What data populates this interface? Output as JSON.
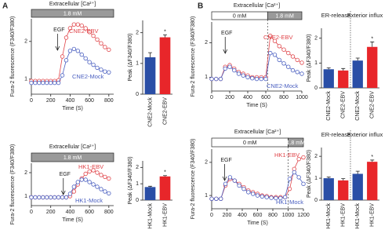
{
  "panel_labels": [
    "A",
    "B"
  ],
  "chart_data": [
    {
      "type": "line",
      "ylabel": "Fura-2 fluorescence (F340/F380)",
      "xlabel": "Time (S)",
      "header": "Extracellular [Ca²⁺]",
      "conditions": [
        {
          "label": "1.8 mM",
          "start": 0,
          "end": 850,
          "color": "#9a9a9a"
        }
      ],
      "annotations": [
        {
          "text": "EGF",
          "x": 270
        }
      ],
      "x": [
        0,
        40,
        80,
        120,
        160,
        200,
        240,
        280,
        320,
        360,
        400,
        440,
        480,
        520,
        560,
        600,
        640,
        680,
        720,
        760,
        800
      ],
      "series": [
        {
          "name": "CNE2-EBV",
          "color": "#e0454a",
          "values": [
            0.95,
            0.95,
            0.95,
            0.95,
            0.95,
            0.95,
            0.95,
            0.97,
            1.6,
            2.1,
            2.35,
            2.45,
            2.45,
            2.42,
            2.35,
            2.25,
            2.15,
            2.05,
            1.95,
            1.85,
            1.78
          ]
        },
        {
          "name": "CNE2-Mock",
          "color": "#4a5fc0",
          "values": [
            0.9,
            0.9,
            0.9,
            0.9,
            0.9,
            0.9,
            0.9,
            0.9,
            1.1,
            1.5,
            1.75,
            1.8,
            1.75,
            1.65,
            1.55,
            1.45,
            1.38,
            1.3,
            1.25,
            1.2,
            1.18
          ]
        }
      ],
      "xlim": [
        0,
        850
      ],
      "xticks": [
        0,
        200,
        400,
        600,
        800
      ],
      "ylim": [
        0.6,
        2.6
      ],
      "yticks": [
        1,
        2
      ]
    },
    {
      "type": "bar",
      "ylabel": "Peak (ΔF340/F380)",
      "categories": [
        "CNE2-Mock",
        "CNE2-EBV"
      ],
      "values": [
        1.2,
        1.85
      ],
      "errors": [
        0.15,
        0.08
      ],
      "colors": [
        "#2a4ea6",
        "#e8262a"
      ],
      "ylim": [
        0,
        2.4
      ],
      "yticks": [
        0,
        1,
        2
      ],
      "annotations": [
        {
          "text": "*",
          "index": 1
        }
      ]
    },
    {
      "type": "line",
      "ylabel": "Fura-2 fluorescence (F340/F380)",
      "xlabel": "Time (S)",
      "header": "Extracellular [Ca²⁺]",
      "conditions": [
        {
          "label": "1.8 mM",
          "start": 0,
          "end": 850,
          "color": "#9a9a9a"
        }
      ],
      "annotations": [
        {
          "text": "EGF",
          "x": 330
        }
      ],
      "x": [
        0,
        40,
        80,
        120,
        160,
        200,
        240,
        280,
        320,
        360,
        400,
        440,
        480,
        520,
        560,
        600,
        640,
        680,
        720,
        760,
        800
      ],
      "series": [
        {
          "name": "HK1-EBV",
          "color": "#e0454a",
          "values": [
            0.95,
            0.95,
            0.95,
            0.95,
            0.95,
            0.95,
            0.95,
            0.95,
            0.95,
            0.95,
            1.0,
            1.2,
            1.5,
            1.75,
            1.95,
            2.05,
            2.1,
            2.0,
            1.9,
            1.82,
            1.75
          ]
        },
        {
          "name": "HK1-Mock",
          "color": "#4a5fc0",
          "values": [
            0.95,
            0.95,
            0.95,
            0.95,
            0.95,
            0.95,
            0.95,
            0.95,
            0.95,
            0.95,
            1.1,
            1.4,
            1.6,
            1.7,
            1.7,
            1.6,
            1.5,
            1.4,
            1.3,
            1.2,
            1.12
          ]
        }
      ],
      "xlim": [
        0,
        850
      ],
      "xticks": [
        0,
        200,
        400,
        600,
        800
      ],
      "ylim": [
        0.6,
        2.4
      ],
      "yticks": [
        1,
        2
      ]
    },
    {
      "type": "bar",
      "ylabel": "Peak (ΔF340/F380)",
      "categories": [
        "HK1-Mock",
        "HK1-EBV"
      ],
      "values": [
        0.8,
        1.45
      ],
      "errors": [
        0.05,
        0.05
      ],
      "colors": [
        "#2a4ea6",
        "#e8262a"
      ],
      "ylim": [
        0,
        2.4
      ],
      "yticks": [
        0,
        1,
        2
      ],
      "annotations": [
        {
          "text": "*",
          "index": 1
        }
      ]
    },
    {
      "type": "line",
      "ylabel": "Fura-2 fluorescence (F340/F380)",
      "xlabel": "Time (S)",
      "header": "Extracellular [Ca²⁺]",
      "conditions": [
        {
          "label": "0 mM",
          "start": 0,
          "end": 620,
          "color": "#ffffff"
        },
        {
          "label": "1.8 mM",
          "start": 620,
          "end": 1000,
          "color": "#9a9a9a"
        }
      ],
      "annotations": [
        {
          "text": "EGF",
          "x": 150
        }
      ],
      "x": [
        0,
        50,
        100,
        150,
        200,
        250,
        300,
        350,
        400,
        450,
        500,
        550,
        600,
        650,
        700,
        750,
        800,
        850,
        900,
        950,
        1000
      ],
      "series": [
        {
          "name": "CNE2-EBV",
          "color": "#e0454a",
          "values": [
            0.95,
            0.95,
            0.95,
            1.3,
            1.35,
            1.25,
            1.15,
            1.1,
            1.05,
            1.0,
            1.0,
            1.0,
            1.0,
            2.2,
            2.05,
            1.9,
            1.8,
            1.7,
            1.6,
            1.5,
            1.42
          ]
        },
        {
          "name": "CNE2-Mock",
          "color": "#4a5fc0",
          "values": [
            0.95,
            0.95,
            0.95,
            1.25,
            1.3,
            1.2,
            1.1,
            1.05,
            1.0,
            0.97,
            0.95,
            0.95,
            0.95,
            1.7,
            1.65,
            1.5,
            1.4,
            1.3,
            1.2,
            1.15,
            1.1
          ]
        }
      ],
      "xlim": [
        0,
        1000
      ],
      "xticks": [
        0,
        200,
        400,
        600,
        800,
        1000
      ],
      "ylim": [
        0.6,
        2.6
      ],
      "yticks": [
        1,
        2
      ]
    },
    {
      "type": "bar",
      "ylabel": "Peak (ΔF340/F380)",
      "categories": [
        "CNE2-Mock",
        "CNE2-EBV",
        "CNE2-Mock",
        "CNE2-EBV"
      ],
      "values": [
        0.75,
        0.7,
        1.1,
        1.65
      ],
      "errors": [
        0.06,
        0.08,
        0.1,
        0.2
      ],
      "colors": [
        "#2a4ea6",
        "#e8262a",
        "#2a4ea6",
        "#e8262a"
      ],
      "group_labels": [
        "ER-release",
        "Exterior influx"
      ],
      "ylim": [
        0,
        2.4
      ],
      "yticks": [
        0,
        1,
        2
      ],
      "annotations": [
        {
          "text": "*",
          "index": 3
        }
      ]
    },
    {
      "type": "line",
      "ylabel": "Fura-2 fluorescence (F340/F380)",
      "xlabel": "Time (S)",
      "header": "Extracellular [Ca²⁺]",
      "conditions": [
        {
          "label": "0 mM",
          "start": 0,
          "end": 1000,
          "color": "#ffffff"
        },
        {
          "label": "1.8 mM",
          "start": 1000,
          "end": 1200,
          "color": "#9a9a9a"
        }
      ],
      "annotations": [
        {
          "text": "EGF",
          "x": 170
        }
      ],
      "x": [
        0,
        60,
        120,
        180,
        240,
        300,
        360,
        420,
        480,
        540,
        600,
        660,
        720,
        780,
        840,
        900,
        960,
        1020,
        1080,
        1140,
        1200
      ],
      "series": [
        {
          "name": "HK1-EBV",
          "color": "#e0454a",
          "values": [
            0.9,
            0.9,
            0.9,
            1.3,
            1.5,
            1.45,
            1.35,
            1.25,
            1.15,
            1.1,
            1.05,
            1.0,
            0.98,
            0.95,
            0.95,
            0.95,
            0.95,
            1.2,
            1.8,
            2.1,
            2.15
          ]
        },
        {
          "name": "HK1-Mock",
          "color": "#4a5fc0",
          "values": [
            0.9,
            0.9,
            0.9,
            1.35,
            1.55,
            1.45,
            1.3,
            1.2,
            1.1,
            1.05,
            1.0,
            0.97,
            0.95,
            0.93,
            0.92,
            0.92,
            0.95,
            1.5,
            1.7,
            1.55,
            1.35
          ]
        }
      ],
      "xlim": [
        0,
        1200
      ],
      "xticks": [
        0,
        200,
        400,
        600,
        800,
        1000,
        1200
      ],
      "ylim": [
        0.6,
        2.4
      ],
      "yticks": [
        1,
        2
      ]
    },
    {
      "type": "bar",
      "ylabel": "Peak (ΔF340/F380)",
      "categories": [
        "HK1-Mock",
        "HK1-EBV",
        "HK1-Mock",
        "HK1-EBV"
      ],
      "values": [
        1.0,
        0.9,
        1.2,
        1.75
      ],
      "errors": [
        0.05,
        0.08,
        0.12,
        0.08
      ],
      "colors": [
        "#2a4ea6",
        "#e8262a",
        "#2a4ea6",
        "#e8262a"
      ],
      "group_labels": [
        "ER-release",
        "Exterior influx"
      ],
      "ylim": [
        0,
        2.4
      ],
      "yticks": [
        0,
        1,
        2
      ],
      "annotations": [
        {
          "text": "*",
          "index": 3
        }
      ]
    }
  ]
}
